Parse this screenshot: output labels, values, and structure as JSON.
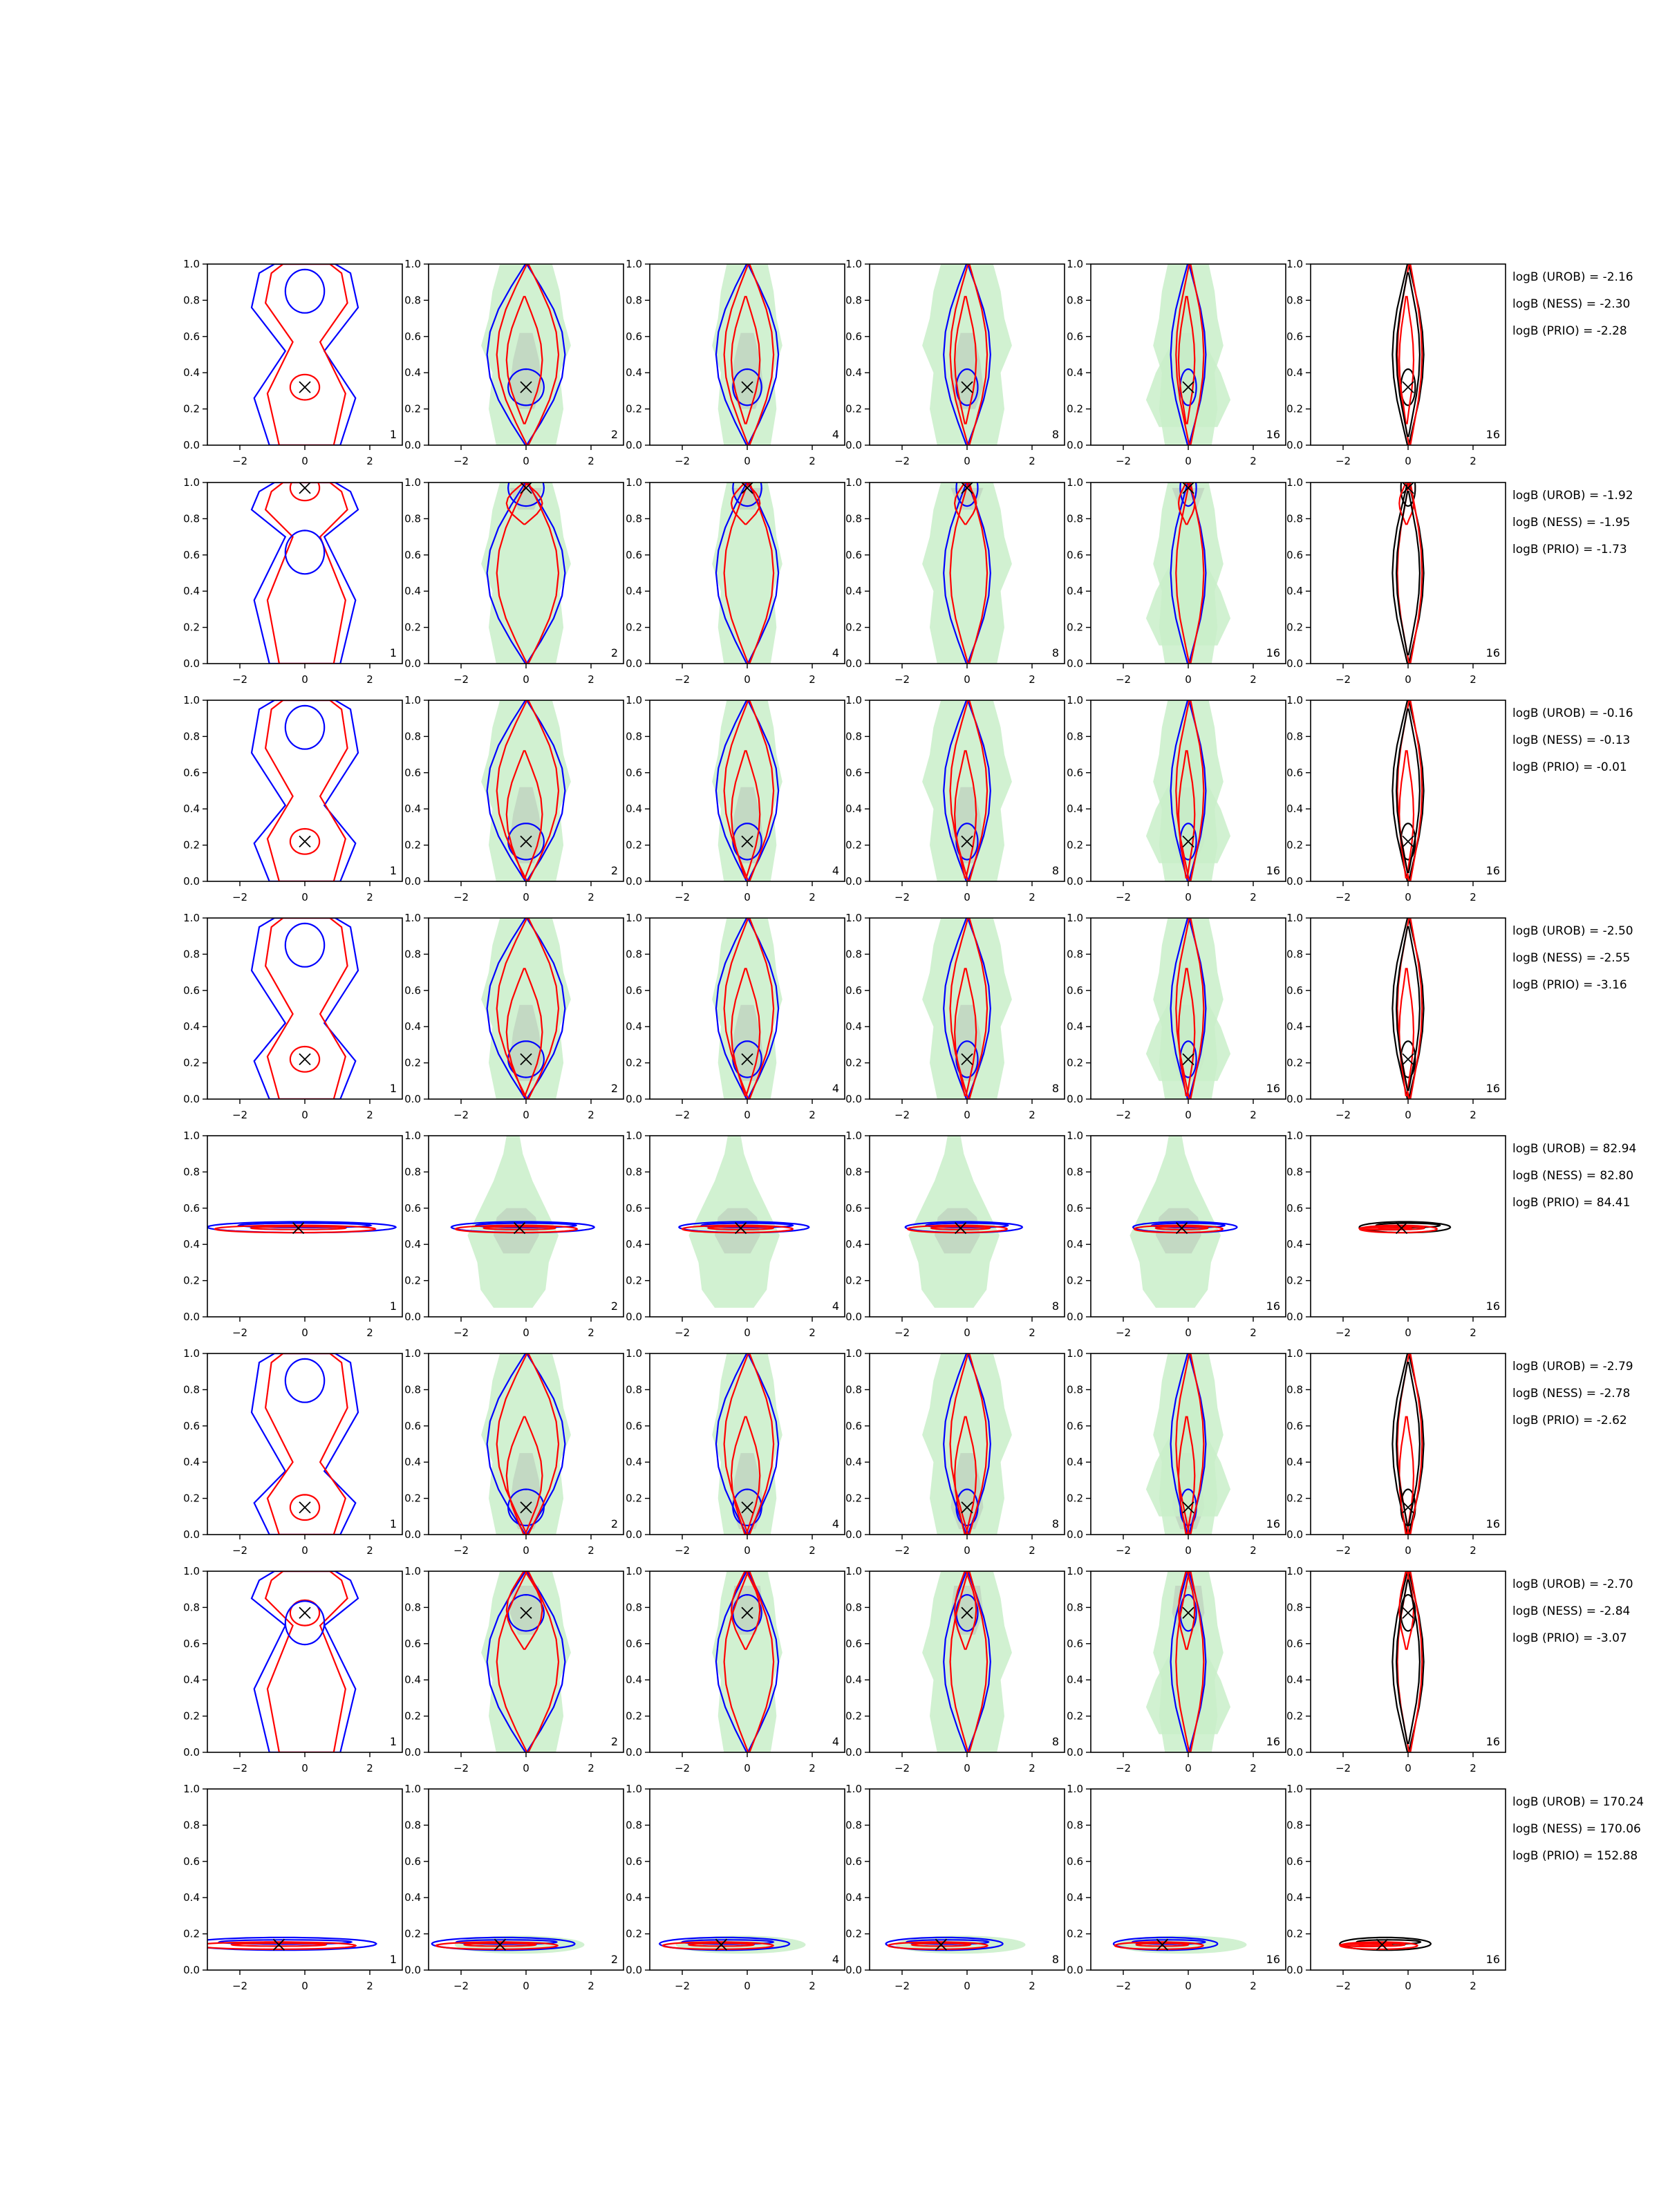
{
  "chart_data": {
    "type": "contour",
    "description_grid": "8 rows x 6 columns of contour panels",
    "x_ticks": [
      "−2",
      "0",
      "2"
    ],
    "y_ticks": [
      "0.0",
      "0.2",
      "0.4",
      "0.6",
      "0.8",
      "1.0"
    ],
    "xlim": [
      -3,
      3
    ],
    "ylim": [
      0,
      1
    ],
    "column_labels": [
      "1",
      "2",
      "4",
      "8",
      "16",
      "16"
    ],
    "colors": {
      "blue": "#0000ff",
      "red": "#ff0000",
      "black": "#000000",
      "green_fill": "#c9efc9",
      "grey_fill": "#b9c9b9"
    },
    "rows": [
      {
        "marker": [
          0.0,
          0.32
        ],
        "logB": {
          "UROB": "logB (UROB) = -2.16",
          "NESS": "logB (NESS) = -2.30",
          "PRIO": "logB (PRIO) = -2.28"
        }
      },
      {
        "marker": [
          0.0,
          0.97
        ],
        "logB": {
          "UROB": "logB (UROB) = -1.92",
          "NESS": "logB (NESS) = -1.95",
          "PRIO": "logB (PRIO) = -1.73"
        }
      },
      {
        "marker": [
          0.0,
          0.22
        ],
        "logB": {
          "UROB": "logB (UROB) = -0.16",
          "NESS": "logB (NESS) = -0.13",
          "PRIO": "logB (PRIO) = -0.01"
        }
      },
      {
        "marker": [
          0.0,
          0.22
        ],
        "logB": {
          "UROB": "logB (UROB) = -2.50",
          "NESS": "logB (NESS) = -2.55",
          "PRIO": "logB (PRIO) = -3.16"
        }
      },
      {
        "marker": [
          -0.2,
          0.49
        ],
        "logB": {
          "UROB": "logB (UROB) = 82.94",
          "NESS": "logB (NESS) = 82.80",
          "PRIO": "logB (PRIO) = 84.41"
        }
      },
      {
        "marker": [
          0.0,
          0.15
        ],
        "logB": {
          "UROB": "logB (UROB) = -2.79",
          "NESS": "logB (NESS) = -2.78",
          "PRIO": "logB (PRIO) = -2.62"
        }
      },
      {
        "marker": [
          0.0,
          0.77
        ],
        "logB": {
          "UROB": "logB (UROB) = -2.70",
          "NESS": "logB (NESS) = -2.84",
          "PRIO": "logB (PRIO) = -3.07"
        }
      },
      {
        "marker": [
          -0.8,
          0.14
        ],
        "logB": {
          "UROB": "logB (UROB) = 170.24",
          "NESS": "logB (NESS) = 170.06",
          "PRIO": "logB (PRIO) = 152.88"
        }
      }
    ]
  }
}
